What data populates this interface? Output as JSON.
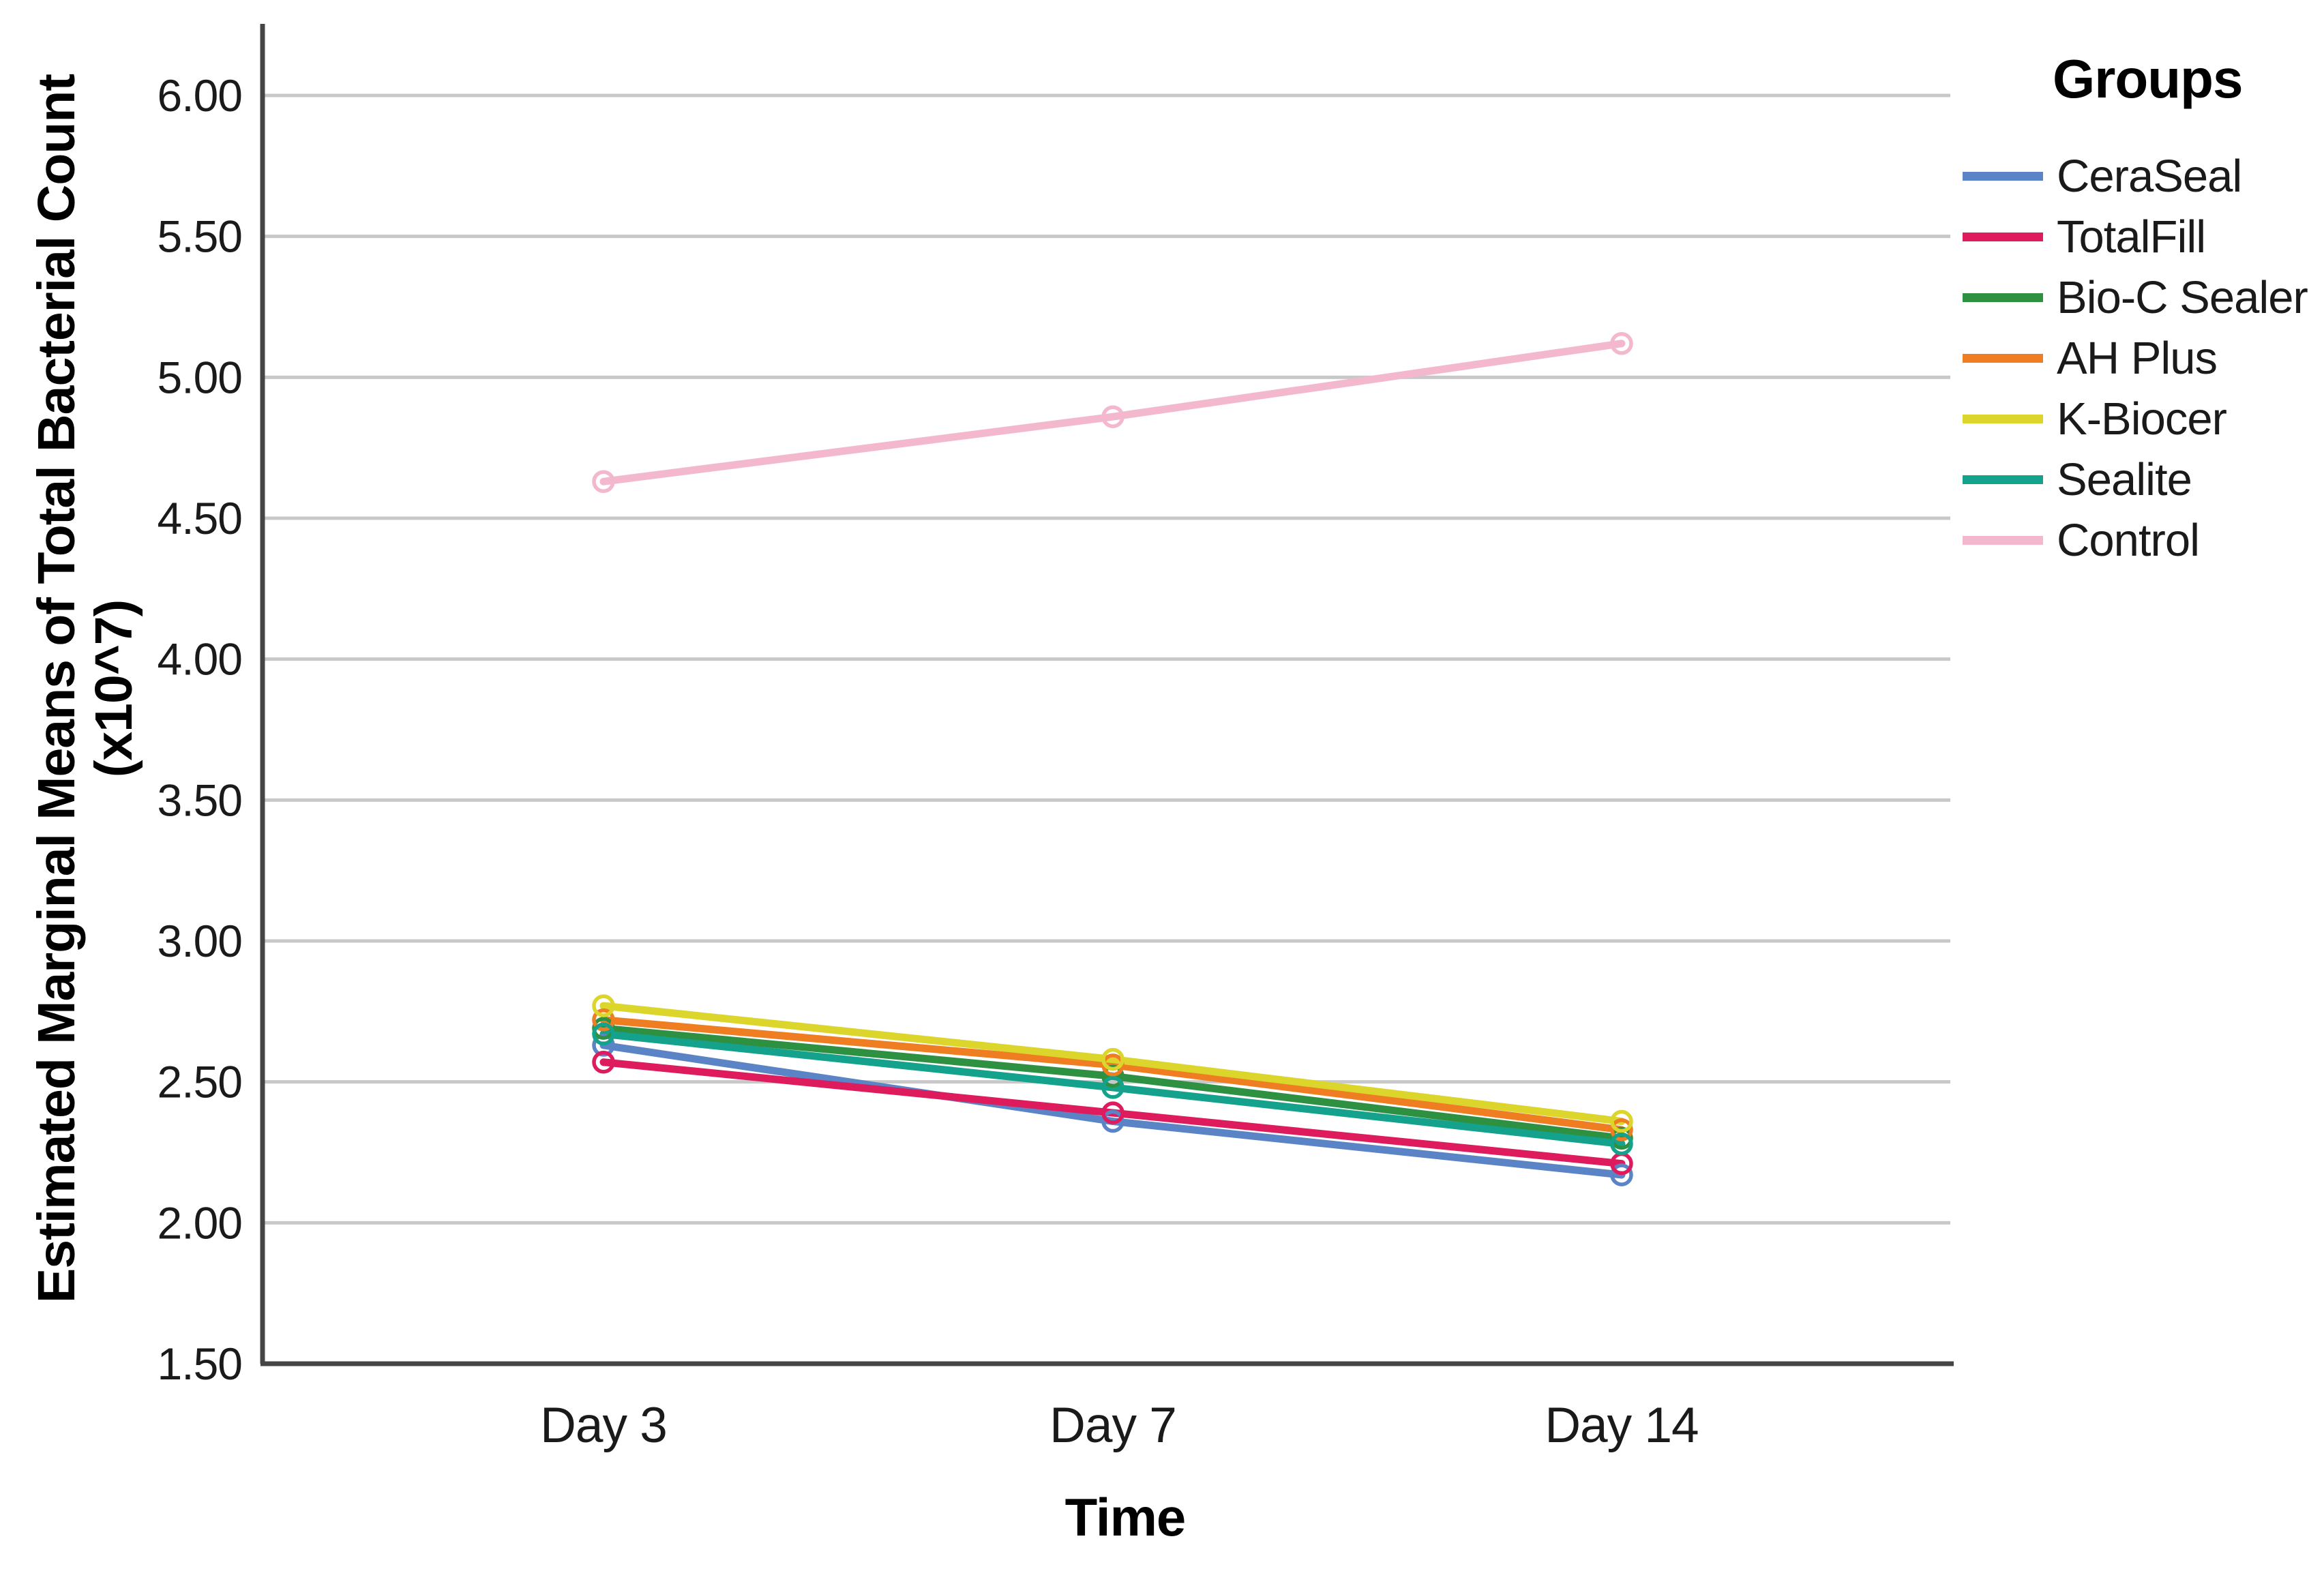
{
  "chart_data": {
    "type": "line",
    "title": "",
    "x_axis": {
      "label": "Time",
      "categories": [
        "Day 3",
        "Day 7",
        "Day 14"
      ]
    },
    "y_axis": {
      "label_line1": "Estimated Marginal Means of Total Bacterial Count",
      "label_line2": "(x10^7)",
      "min": 1.5,
      "max": 6.0,
      "tick_step": 0.5,
      "tick_labels": [
        "6.00",
        "5.50",
        "5.00",
        "4.50",
        "4.00",
        "3.50",
        "3.00",
        "2.50",
        "2.00",
        "1.50"
      ]
    },
    "legend": {
      "title": "Groups",
      "position": "right"
    },
    "grid": true,
    "marker": "open-circle",
    "series": [
      {
        "name": "CeraSeal",
        "color": "#5B84C6",
        "values": [
          2.63,
          2.36,
          2.17
        ]
      },
      {
        "name": "TotalFill",
        "color": "#DE1B5C",
        "values": [
          2.57,
          2.39,
          2.21
        ]
      },
      {
        "name": "Bio-C Sealer",
        "color": "#2E9142",
        "values": [
          2.69,
          2.52,
          2.3
        ]
      },
      {
        "name": "AH Plus",
        "color": "#EF7D22",
        "values": [
          2.72,
          2.56,
          2.33
        ]
      },
      {
        "name": "K-Biocer",
        "color": "#DCD62C",
        "values": [
          2.77,
          2.58,
          2.36
        ]
      },
      {
        "name": "Sealite",
        "color": "#14A28C",
        "values": [
          2.67,
          2.48,
          2.28
        ]
      },
      {
        "name": "Control",
        "color": "#F4B8CE",
        "values": [
          4.63,
          4.86,
          5.12
        ]
      }
    ]
  },
  "colors": {
    "background": "#FFFFFF",
    "axis_line": "#454545",
    "gridline": "#C8C8C8",
    "tick_text": "#1A1A1A"
  }
}
